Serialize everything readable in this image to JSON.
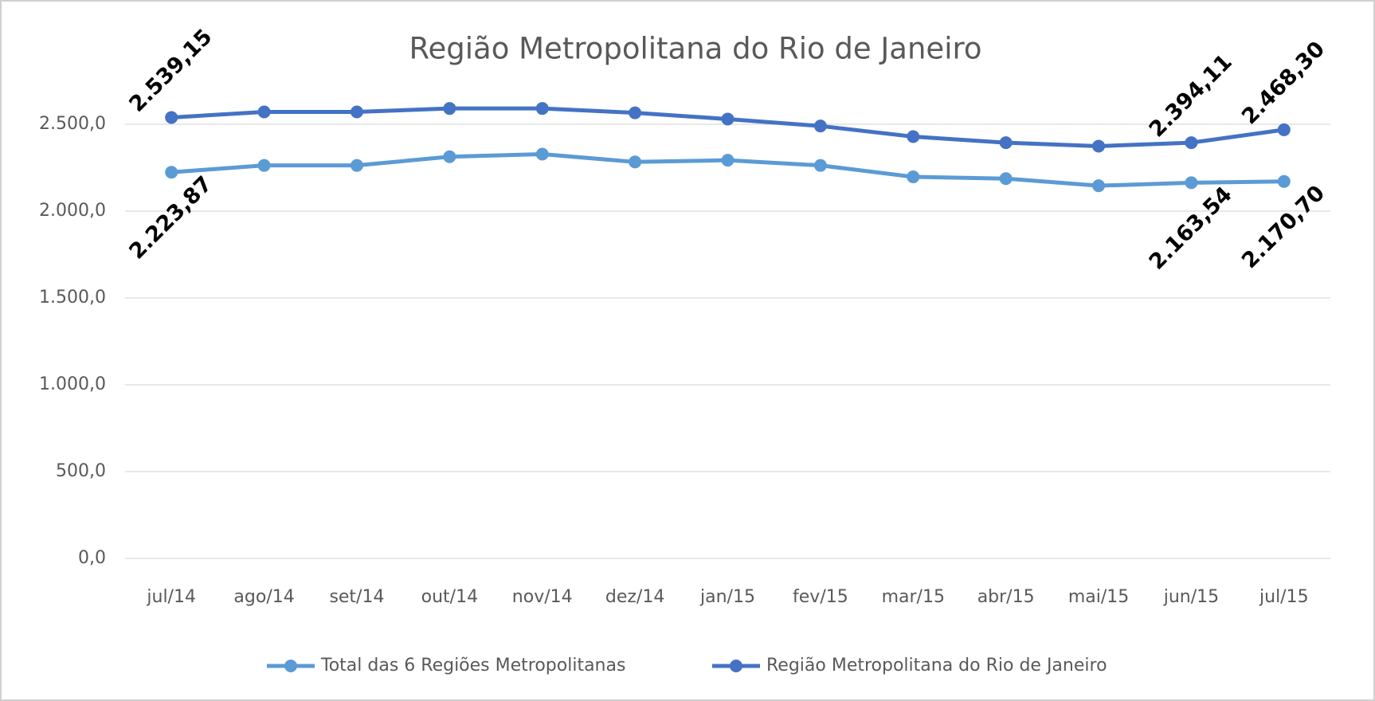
{
  "chart_data": {
    "type": "line",
    "title": "Região Metropolitana do Rio de Janeiro",
    "categories": [
      "jul/14",
      "ago/14",
      "set/14",
      "out/14",
      "nov/14",
      "dez/14",
      "jan/15",
      "fev/15",
      "mar/15",
      "abr/15",
      "mai/15",
      "jun/15",
      "jul/15"
    ],
    "series": [
      {
        "name": "Total das 6 Regiões Metropolitanas",
        "color": "#5b9bd5",
        "values": [
          2223.87,
          2263,
          2263,
          2313,
          2328,
          2283,
          2293,
          2263,
          2197,
          2187,
          2146,
          2163.54,
          2170.7
        ],
        "value_labels": [
          "2.223,87",
          null,
          null,
          null,
          null,
          null,
          null,
          null,
          null,
          null,
          null,
          "2.163,54",
          "2.170,70"
        ],
        "label_position": "below"
      },
      {
        "name": "Região Metropolitana do Rio de Janeiro",
        "color": "#4472c4",
        "values": [
          2539.15,
          2571,
          2571,
          2591,
          2591,
          2566,
          2530,
          2490,
          2429,
          2394,
          2374,
          2394.11,
          2468.3
        ],
        "value_labels": [
          "2.539,15",
          null,
          null,
          null,
          null,
          null,
          null,
          null,
          null,
          null,
          null,
          "2.394,11",
          "2.468,30"
        ],
        "label_position": "above"
      }
    ],
    "ylim": [
      0,
      3000
    ],
    "yticks": [
      {
        "value": 0,
        "label": "0,0"
      },
      {
        "value": 500,
        "label": "500,0"
      },
      {
        "value": 1000,
        "label": "1.000,0"
      },
      {
        "value": 1500,
        "label": "1.500,0"
      },
      {
        "value": 2000,
        "label": "2.000,0"
      },
      {
        "value": 2500,
        "label": "2.500,0"
      }
    ],
    "grid": true,
    "legend": "bottom"
  }
}
